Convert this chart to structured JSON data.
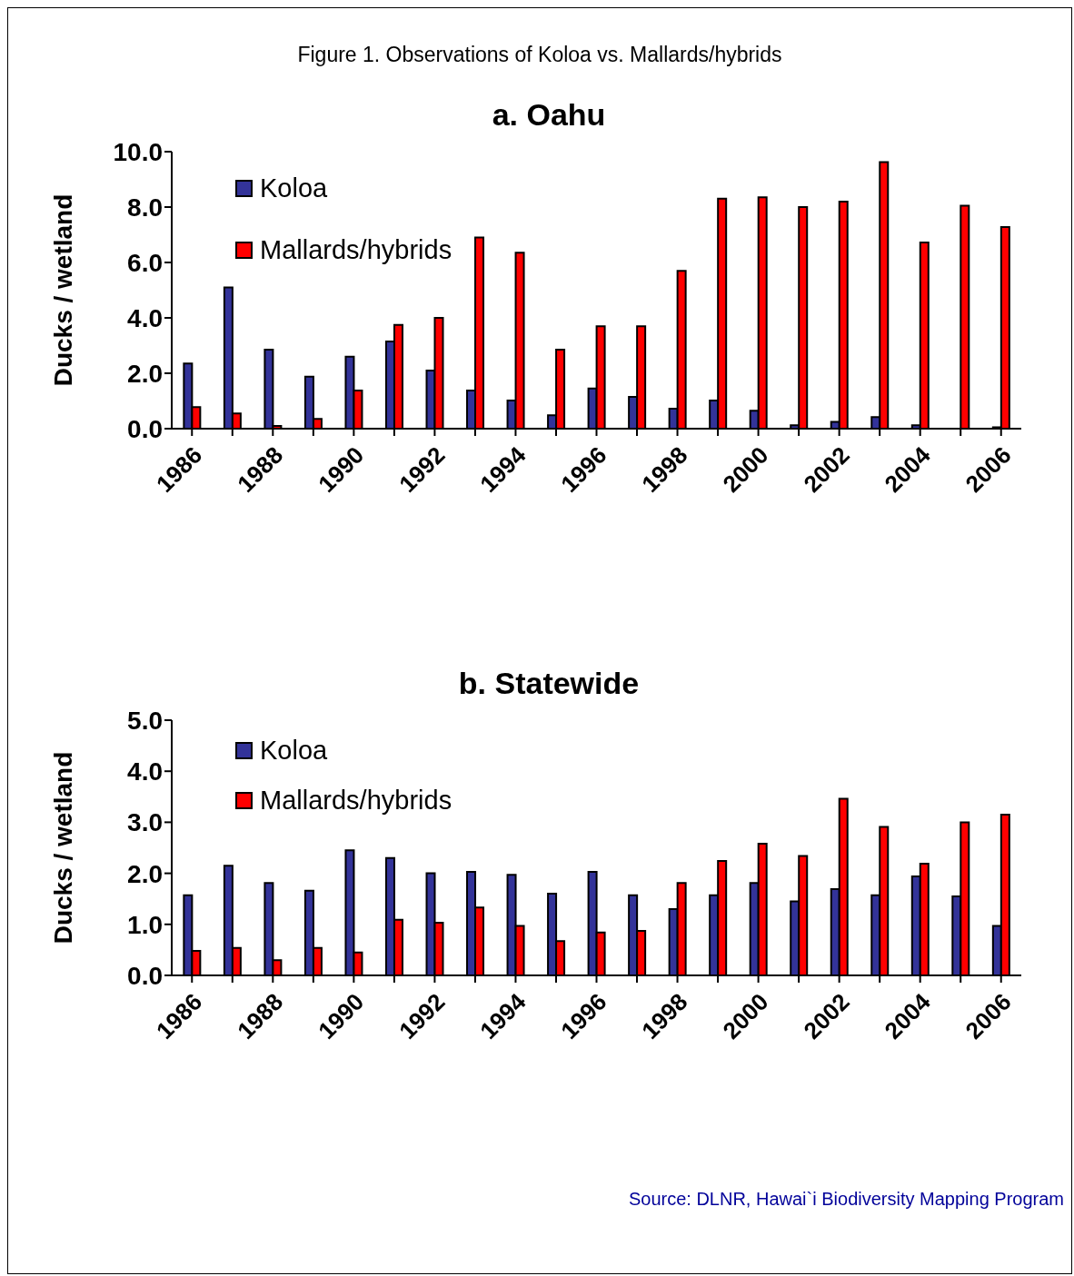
{
  "chart_data": [
    {
      "type": "bar",
      "title": "a. Oahu",
      "annotations": [
        "Figure 1. Observations of Koloa vs. Mallards/hybrids"
      ],
      "ylabel": "Ducks / wetland",
      "categories": [
        "1986",
        null,
        "1988",
        null,
        "1990",
        null,
        "1992",
        null,
        "1994",
        null,
        "1996",
        null,
        "1998",
        null,
        "2000",
        null,
        "2002",
        null,
        "2004",
        null,
        "2006"
      ],
      "series": [
        {
          "name": "Koloa",
          "color": "#333399",
          "values": [
            2.35,
            5.1,
            2.85,
            1.88,
            2.6,
            3.15,
            2.1,
            1.38,
            1.02,
            0.48,
            1.45,
            1.15,
            0.72,
            1.02,
            0.65,
            0.12,
            0.25,
            0.42,
            0.12,
            0,
            0.05
          ]
        },
        {
          "name": "Mallards/hybrids",
          "color": "#ff0000",
          "values": [
            0.78,
            0.55,
            0.1,
            0.35,
            1.38,
            3.75,
            4.0,
            6.9,
            6.35,
            2.85,
            3.7,
            3.7,
            5.7,
            8.3,
            8.35,
            8.0,
            8.2,
            9.62,
            6.72,
            8.05,
            7.28
          ]
        }
      ],
      "ylim": [
        0,
        10
      ],
      "yticks": [
        {
          "value": 0,
          "label": "0.0"
        },
        {
          "value": 2,
          "label": "2.0"
        },
        {
          "value": 4,
          "label": "4.0"
        },
        {
          "value": 6,
          "label": "6.0"
        },
        {
          "value": 8,
          "label": "8.0"
        },
        {
          "value": 10,
          "label": "10.0"
        }
      ],
      "legend": "top left"
    },
    {
      "type": "bar",
      "title": "b. Statewide",
      "annotations": [
        "Source: DLNR, Hawai`i Biodiversity Mapping Program"
      ],
      "ylabel": "Ducks / wetland",
      "categories": [
        "1986",
        null,
        "1988",
        null,
        "1990",
        null,
        "1992",
        null,
        "1994",
        null,
        "1996",
        null,
        "1998",
        null,
        "2000",
        null,
        "2002",
        null,
        "2004",
        null,
        "2006"
      ],
      "series": [
        {
          "name": "Koloa",
          "color": "#333399",
          "values": [
            1.57,
            2.15,
            1.81,
            1.66,
            2.45,
            2.3,
            2.0,
            2.03,
            1.97,
            1.6,
            2.03,
            1.57,
            1.3,
            1.57,
            1.81,
            1.45,
            1.69,
            1.57,
            1.94,
            1.55,
            0.97
          ]
        },
        {
          "name": "Mallards/hybrids",
          "color": "#ff0000",
          "values": [
            0.48,
            0.54,
            0.3,
            0.54,
            0.45,
            1.09,
            1.03,
            1.33,
            0.97,
            0.67,
            0.84,
            0.87,
            1.81,
            2.24,
            2.58,
            2.34,
            3.46,
            2.91,
            2.19,
            3.0,
            3.15
          ]
        }
      ],
      "ylim": [
        0,
        5
      ],
      "yticks": [
        {
          "value": 0,
          "label": "0.0"
        },
        {
          "value": 1,
          "label": "1.0"
        },
        {
          "value": 2,
          "label": "2.0"
        },
        {
          "value": 3,
          "label": "3.0"
        },
        {
          "value": 4,
          "label": "4.0"
        },
        {
          "value": 5,
          "label": "5.0"
        }
      ],
      "legend": "top left"
    }
  ]
}
